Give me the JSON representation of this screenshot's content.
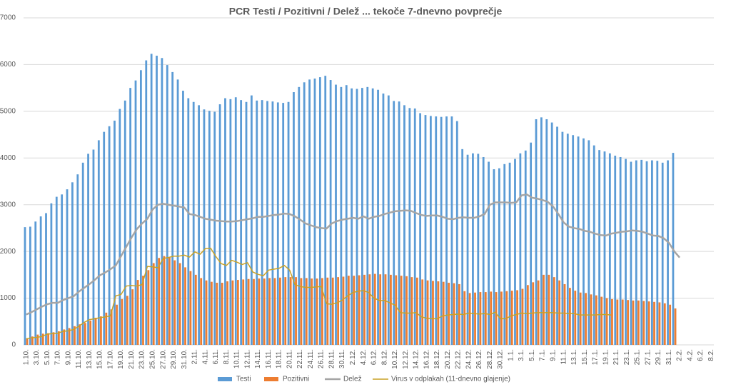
{
  "chart_data": {
    "type": "combo",
    "title": "PCR Testi / Pozitivni / Delež ... tekoče 7-dnevno povprečje",
    "categories": [
      "1.10.",
      null,
      "3.10.",
      null,
      "5.10.",
      null,
      "7.10.",
      null,
      "9.10.",
      null,
      "11.10.",
      null,
      "13.10.",
      null,
      "15.10.",
      null,
      "17.10.",
      null,
      "19.10.",
      null,
      "21.10.",
      null,
      "23.10.",
      null,
      "25.10.",
      null,
      "27.10.",
      null,
      "29.10.",
      null,
      "31.10.",
      null,
      "2.11.",
      null,
      "4.11.",
      null,
      "6.11.",
      null,
      "8.11.",
      null,
      "10.11.",
      null,
      "12.11.",
      null,
      "14.11.",
      null,
      "16.11.",
      null,
      "18.11.",
      null,
      "20.11.",
      null,
      "22.11.",
      null,
      "24.11.",
      null,
      "26.11.",
      null,
      "28.11.",
      null,
      "30.11.",
      null,
      "2.12.",
      null,
      "4.12.",
      null,
      "6.12.",
      null,
      "8.12.",
      null,
      "10.12.",
      null,
      "12.12.",
      null,
      "14.12.",
      null,
      "16.12.",
      null,
      "18.12.",
      null,
      "20.12.",
      null,
      "22.12.",
      null,
      "24.12.",
      null,
      "26.12.",
      null,
      "28.12.",
      null,
      "30.12.",
      null,
      "1.1.",
      null,
      "3.1.",
      null,
      "5.1.",
      null,
      "7.1.",
      null,
      "9.1.",
      null,
      "11.1.",
      null,
      "13.1.",
      null,
      "15.1.",
      null,
      "17.1.",
      null,
      "19.1.",
      null,
      "21.1.",
      null,
      "23.1.",
      null,
      "25.1.",
      null,
      "27.1.",
      null,
      "29.1.",
      null,
      "31.1.",
      null,
      "2.2.",
      null,
      "4.2.",
      null,
      "6.2.",
      null,
      "8.2."
    ],
    "series": [
      {
        "name": "Testi",
        "type": "bar",
        "color": "#5b9bd5",
        "values": [
          2520,
          2530,
          2640,
          2750,
          2820,
          3030,
          3170,
          3220,
          3330,
          3480,
          3650,
          3900,
          4090,
          4180,
          4380,
          4560,
          4680,
          4800,
          5050,
          5230,
          5500,
          5660,
          5880,
          6090,
          6230,
          6190,
          6140,
          5990,
          5840,
          5680,
          5440,
          5280,
          5200,
          5130,
          5040,
          5010,
          4990,
          5150,
          5280,
          5260,
          5300,
          5240,
          5200,
          5340,
          5230,
          5240,
          5220,
          5210,
          5190,
          5180,
          5200,
          5410,
          5520,
          5620,
          5680,
          5700,
          5730,
          5760,
          5670,
          5570,
          5520,
          5560,
          5490,
          5480,
          5500,
          5520,
          5490,
          5460,
          5380,
          5340,
          5220,
          5210,
          5130,
          5070,
          5060,
          4960,
          4920,
          4900,
          4890,
          4880,
          4890,
          4890,
          4790,
          4190,
          4070,
          4100,
          4090,
          4020,
          3920,
          3760,
          3780,
          3870,
          3900,
          3980,
          4100,
          4160,
          4330,
          4830,
          4870,
          4830,
          4760,
          4670,
          4560,
          4520,
          4490,
          4460,
          4420,
          4380,
          4270,
          4170,
          4140,
          4100,
          4050,
          4020,
          3980,
          3920,
          3950,
          3960,
          3930,
          3950,
          3940,
          3900,
          3950,
          4110,
          null,
          null,
          null,
          null,
          null,
          null,
          null
        ]
      },
      {
        "name": "Pozitivni",
        "type": "bar",
        "color": "#ed7d31",
        "values": [
          140,
          180,
          220,
          240,
          250,
          270,
          290,
          330,
          360,
          400,
          440,
          470,
          520,
          580,
          610,
          690,
          760,
          860,
          980,
          1050,
          1190,
          1390,
          1480,
          1600,
          1750,
          1860,
          1900,
          1870,
          1810,
          1750,
          1660,
          1580,
          1500,
          1430,
          1380,
          1350,
          1330,
          1330,
          1360,
          1380,
          1390,
          1400,
          1410,
          1410,
          1420,
          1420,
          1430,
          1430,
          1440,
          1450,
          1450,
          1450,
          1430,
          1430,
          1420,
          1420,
          1430,
          1440,
          1440,
          1450,
          1460,
          1480,
          1480,
          1490,
          1500,
          1510,
          1520,
          1510,
          1510,
          1500,
          1490,
          1480,
          1470,
          1450,
          1440,
          1400,
          1380,
          1370,
          1360,
          1350,
          1330,
          1320,
          1300,
          1150,
          1110,
          1120,
          1130,
          1130,
          1140,
          1130,
          1140,
          1150,
          1160,
          1170,
          1200,
          1280,
          1340,
          1380,
          1500,
          1500,
          1450,
          1380,
          1300,
          1220,
          1160,
          1120,
          1110,
          1080,
          1060,
          1030,
          1000,
          980,
          970,
          970,
          960,
          950,
          950,
          940,
          930,
          920,
          910,
          890,
          860,
          780,
          null,
          null,
          null,
          null,
          null,
          null,
          null
        ]
      },
      {
        "name": "Delež",
        "type": "line",
        "color": "#a5a5a5",
        "width": 2.5,
        "values": [
          650,
          700,
          760,
          820,
          870,
          900,
          900,
          960,
          1000,
          1040,
          1140,
          1220,
          1300,
          1390,
          1490,
          1550,
          1620,
          1700,
          1900,
          2100,
          2300,
          2480,
          2600,
          2700,
          2900,
          3000,
          3020,
          3000,
          2980,
          2960,
          2940,
          2800,
          2780,
          2740,
          2700,
          2680,
          2660,
          2650,
          2640,
          2640,
          2650,
          2670,
          2690,
          2710,
          2740,
          2740,
          2760,
          2780,
          2790,
          2810,
          2800,
          2750,
          2680,
          2600,
          2560,
          2520,
          2500,
          2490,
          2600,
          2650,
          2680,
          2700,
          2720,
          2700,
          2750,
          2700,
          2740,
          2760,
          2800,
          2830,
          2860,
          2870,
          2880,
          2870,
          2820,
          2780,
          2760,
          2770,
          2770,
          2740,
          2700,
          2690,
          2720,
          2730,
          2720,
          2720,
          2750,
          2800,
          3000,
          3050,
          3050,
          3050,
          3040,
          3050,
          3200,
          3220,
          3150,
          3130,
          3100,
          3060,
          2960,
          2800,
          2620,
          2530,
          2500,
          2480,
          2440,
          2420,
          2380,
          2350,
          2340,
          2380,
          2400,
          2420,
          2430,
          2450,
          2440,
          2420,
          2380,
          2340,
          2330,
          2280,
          2180,
          2000,
          1870,
          null,
          null,
          null,
          null,
          null,
          null
        ]
      },
      {
        "name": "Virus v odplakah (11-dnevno glajenje)",
        "type": "line",
        "color": "#c9a227",
        "width": 1.5,
        "values": [
          130,
          150,
          160,
          180,
          230,
          240,
          250,
          290,
          300,
          330,
          400,
          480,
          540,
          560,
          580,
          600,
          620,
          1050,
          1080,
          1260,
          1270,
          1260,
          1290,
          1680,
          1670,
          1650,
          1850,
          1870,
          1900,
          1900,
          1920,
          1880,
          1990,
          1940,
          2060,
          2070,
          1890,
          1740,
          1700,
          1810,
          1770,
          1720,
          1760,
          1560,
          1510,
          1480,
          1600,
          1620,
          1640,
          1700,
          1600,
          1290,
          1250,
          1230,
          1230,
          1240,
          1250,
          880,
          870,
          900,
          960,
          1050,
          1120,
          1150,
          1160,
          1120,
          1000,
          950,
          950,
          900,
          850,
          690,
          680,
          680,
          690,
          600,
          570,
          560,
          560,
          620,
          640,
          650,
          660,
          650,
          680,
          670,
          660,
          670,
          650,
          700,
          560,
          560,
          620,
          650,
          680,
          670,
          680,
          690,
          690,
          690,
          690,
          680,
          680,
          670,
          670,
          640,
          640,
          640,
          640,
          650,
          650,
          640,
          null,
          null,
          null,
          null,
          null,
          null,
          null,
          null,
          null,
          null,
          null,
          null,
          null,
          null,
          null,
          null,
          null,
          null,
          null
        ]
      }
    ],
    "ylim": [
      0,
      7000
    ],
    "yticks": [
      0,
      1000,
      2000,
      3000,
      4000,
      5000,
      6000,
      7000
    ],
    "grid": true,
    "legend": "bottom"
  }
}
